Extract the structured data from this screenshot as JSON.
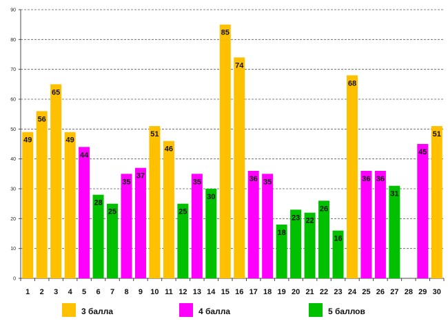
{
  "chart_data": {
    "type": "bar",
    "title": "",
    "xlabel": "",
    "ylabel": "",
    "ylim": [
      0,
      90
    ],
    "y_ticks": [
      0,
      10,
      20,
      30,
      40,
      50,
      60,
      70,
      80,
      90
    ],
    "grid": true,
    "legend_position": "bottom",
    "categories": [
      "1",
      "2",
      "3",
      "4",
      "5",
      "6",
      "7",
      "8",
      "9",
      "10",
      "11",
      "12",
      "13",
      "14",
      "15",
      "16",
      "17",
      "18",
      "19",
      "20",
      "21",
      "22",
      "23",
      "24",
      "25",
      "26",
      "27",
      "28",
      "29",
      "30"
    ],
    "values": [
      49,
      56,
      65,
      49,
      44,
      28,
      25,
      35,
      37,
      51,
      46,
      25,
      35,
      30,
      85,
      74,
      36,
      35,
      18,
      23,
      22,
      26,
      16,
      68,
      36,
      36,
      31,
      null,
      45,
      51
    ],
    "groups": [
      "3 балла",
      "3 балла",
      "3 балла",
      "3 балла",
      "4 балла",
      "5 баллов",
      "5 баллов",
      "4 балла",
      "4 балла",
      "3 балла",
      "3 балла",
      "5 баллов",
      "4 балла",
      "5 баллов",
      "3 балла",
      "3 балла",
      "4 балла",
      "4 балла",
      "5 баллов",
      "5 баллов",
      "5 баллов",
      "5 баллов",
      "5 баллов",
      "3 балла",
      "4 балла",
      "4 балла",
      "5 баллов",
      null,
      "4 балла",
      "3 балла"
    ],
    "legend": [
      {
        "name": "3 балла",
        "color": "#FFC000"
      },
      {
        "name": "4 балла",
        "color": "#FF00FF"
      },
      {
        "name": "5 баллов",
        "color": "#00C000"
      }
    ]
  }
}
